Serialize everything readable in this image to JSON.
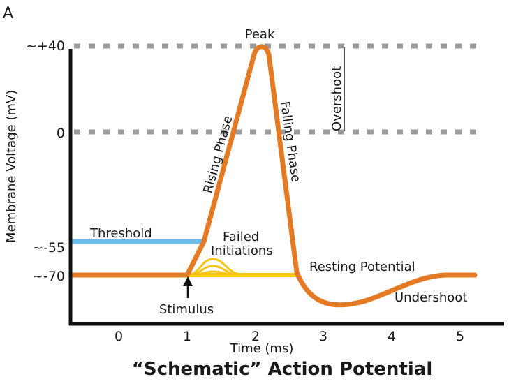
{
  "panel_label": "A",
  "title": "“Schematic” Action Potential",
  "x_axis": {
    "label": "Time (ms)",
    "ticks": [
      "0",
      "1",
      "2",
      "3",
      "4",
      "5"
    ]
  },
  "y_axis": {
    "label": "Membrane Voltage (mV)",
    "ticks": {
      "plus40": "~+40",
      "zero": "0",
      "minus55": "~-55",
      "minus70": "~-70"
    }
  },
  "annotations": {
    "peak": "Peak",
    "overshoot": "Overshoot",
    "rising_phase": "Rising Phase",
    "falling_phase": "Falling Phase",
    "threshold": "Threshold",
    "failed_line1": "Failed",
    "failed_line2": "Initiations",
    "resting_potential": "Resting Potential",
    "stimulus": "Stimulus",
    "undershoot": "Undershoot"
  },
  "colors": {
    "action_potential": "#e57a24",
    "threshold": "#6cbde9",
    "failed_initiations": "#f5c518",
    "resting_line": "#f5c518",
    "reference_lines": "#999999",
    "axes": "#111111"
  }
}
